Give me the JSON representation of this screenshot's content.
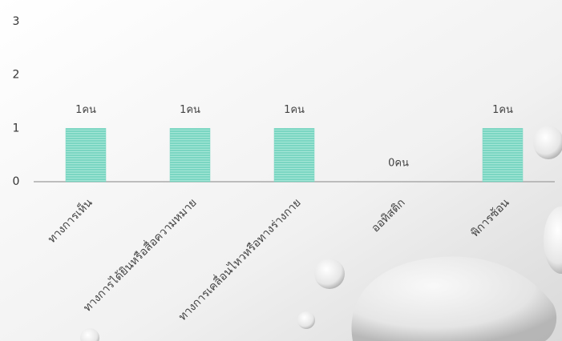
{
  "chart_data": {
    "type": "bar",
    "categories": [
      "ทางการเห็น",
      "ทางการได้ยินหรือสื่อความหมาย",
      "ทางการเคลื่อนไหวหรือทางร่างกาย",
      "ออทิสติก",
      "พิการซ้อน"
    ],
    "values": [
      1,
      1,
      1,
      0,
      1
    ],
    "value_labels": [
      "1คน",
      "1คน",
      "1คน",
      "0คน",
      "1คน"
    ],
    "color": "#7ad6c2",
    "ylim": [
      0,
      3
    ],
    "yticks": [
      0,
      1,
      2,
      3
    ],
    "grid": false
  }
}
